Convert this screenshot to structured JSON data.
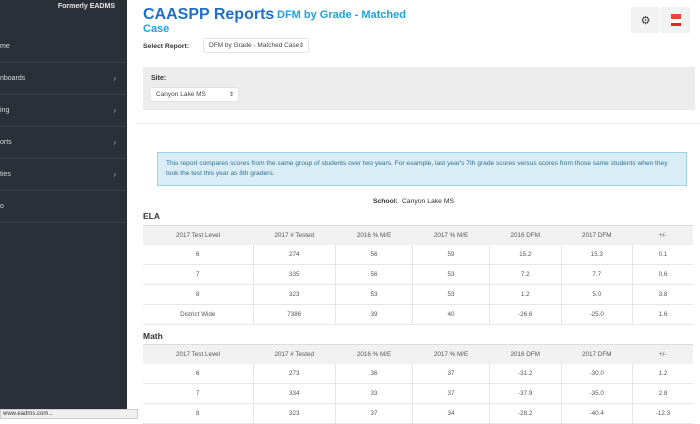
{
  "sidebar": {
    "brand": "Formerly EADMS",
    "items": [
      {
        "label": "me",
        "chevron": false
      },
      {
        "label": "nboards",
        "chevron": true
      },
      {
        "label": "ing",
        "chevron": true
      },
      {
        "label": "orts",
        "chevron": true
      },
      {
        "label": "ties",
        "chevron": true
      },
      {
        "label": "o",
        "chevron": false
      }
    ]
  },
  "header": {
    "title": "CAASPP Reports",
    "subtitle_line1": "DFM by Grade - Matched",
    "subtitle_line2": "Case",
    "settings_icon": "gears-icon",
    "pdf_icon": "pdf-icon"
  },
  "select_report": {
    "label": "Select Report:",
    "value": "DFM by Grade - Matched Case"
  },
  "site": {
    "label": "Site:",
    "value": "Canyon Lake MS"
  },
  "info": "This report compares scores from the same group of students over two years. For example, last year's 7th grade scores versus scores from those same students when they took the test this year as 8th graders.",
  "school": {
    "label": "School:",
    "value": "Canyon Lake MS"
  },
  "columns": [
    "2017 Test Level",
    "2017 # Tested",
    "2016 % M/E",
    "2017 % M/E",
    "2016 DFM",
    "2017 DFM",
    "+/-"
  ],
  "ela": {
    "title": "ELA",
    "rows": [
      [
        "6",
        "274",
        "56",
        "59",
        "15.2",
        "15.3",
        "0.1"
      ],
      [
        "7",
        "335",
        "56",
        "53",
        "7.2",
        "7.7",
        "0.6"
      ],
      [
        "8",
        "323",
        "53",
        "53",
        "1.2",
        "5.0",
        "3.8"
      ],
      [
        "District Wide",
        "7386",
        "39",
        "40",
        "-26.6",
        "-25.0",
        "1.6"
      ]
    ]
  },
  "math": {
    "title": "Math",
    "rows": [
      [
        "6",
        "273",
        "36",
        "37",
        "-31.2",
        "-30.0",
        "1.2"
      ],
      [
        "7",
        "334",
        "33",
        "37",
        "-37.9",
        "-35.0",
        "2.8"
      ],
      [
        "8",
        "323",
        "37",
        "34",
        "-28.2",
        "-40.4",
        "-12.3"
      ]
    ]
  },
  "status_bar": "www.eadms.com..."
}
